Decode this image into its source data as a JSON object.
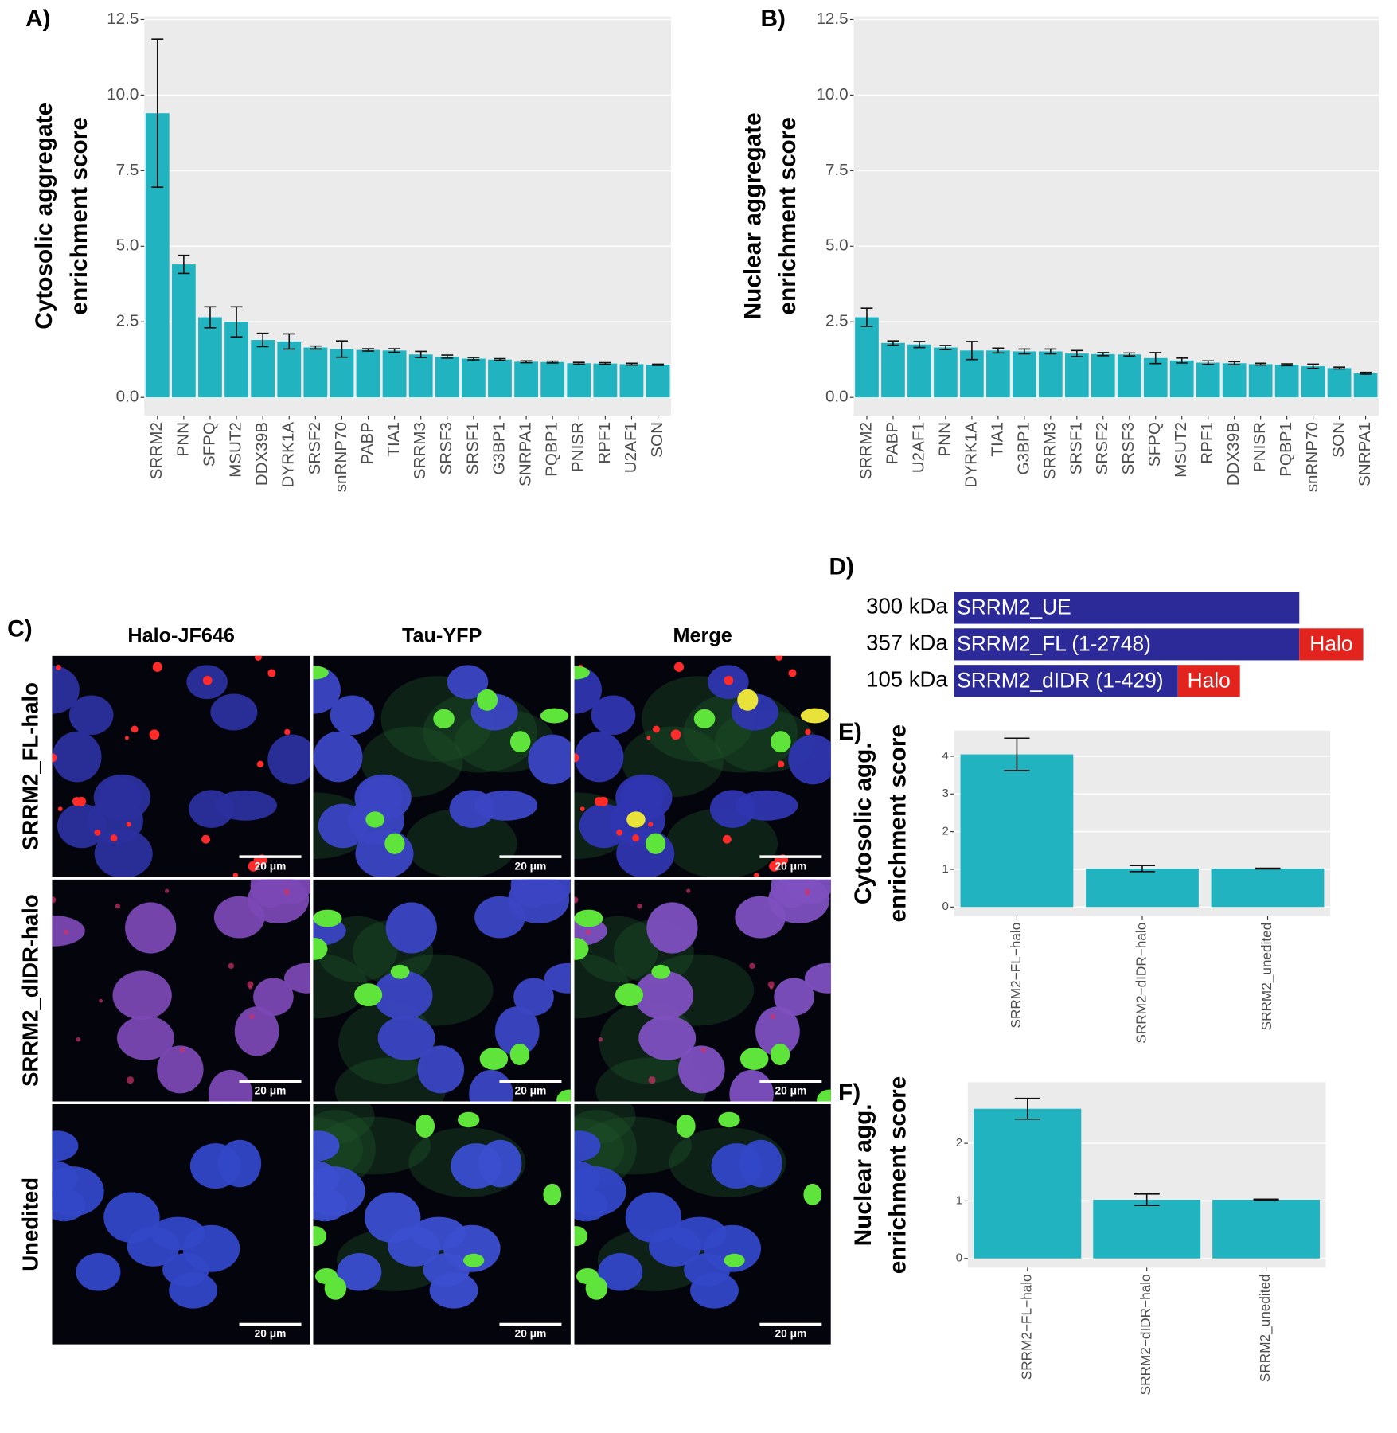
{
  "chart_data": [
    {
      "type": "bar",
      "panel_label": "A)",
      "ylabel": [
        "Cytosolic aggregate",
        "enrichment score"
      ],
      "categories": [
        "SRRM2",
        "PNN",
        "SFPQ",
        "MSUT2",
        "DDX39B",
        "DYRK1A",
        "SRSF2",
        "snRNP70",
        "PABP",
        "TIA1",
        "SRRM3",
        "SRSF3",
        "SRSF1",
        "G3BP1",
        "SNRPA1",
        "PQBP1",
        "PNISR",
        "RPF1",
        "U2AF1",
        "SON"
      ],
      "values": [
        9.4,
        4.4,
        2.65,
        2.5,
        1.9,
        1.85,
        1.65,
        1.6,
        1.57,
        1.55,
        1.42,
        1.35,
        1.28,
        1.25,
        1.18,
        1.17,
        1.13,
        1.12,
        1.1,
        1.08
      ],
      "errors": [
        2.45,
        0.3,
        0.35,
        0.5,
        0.22,
        0.25,
        0.05,
        0.27,
        0.04,
        0.06,
        0.1,
        0.05,
        0.04,
        0.03,
        0.03,
        0.03,
        0.03,
        0.03,
        0.03,
        0.02
      ],
      "color": "#21b3bf",
      "ylim": [
        -0.6,
        12.6
      ],
      "yticks": [
        {
          "value": 0,
          "label": "0.0"
        },
        2.5,
        {
          "value": 5,
          "label": "5.0"
        },
        7.5,
        {
          "value": 10,
          "label": "10.0"
        },
        12.5
      ],
      "grid": true
    },
    {
      "type": "bar",
      "panel_label": "B)",
      "ylabel": [
        "Nuclear aggregate",
        "enrichment score"
      ],
      "categories": [
        "SRRM2",
        "PABP",
        "U2AF1",
        "PNN",
        "DYRK1A",
        "TIA1",
        "G3BP1",
        "SRRM3",
        "SRSF1",
        "SRSF2",
        "SRSF3",
        "SFPQ",
        "MSUT2",
        "RPF1",
        "DDX39B",
        "PNISR",
        "PQBP1",
        "snRNP70",
        "SON",
        "SNRPA1"
      ],
      "values": [
        2.65,
        1.8,
        1.75,
        1.65,
        1.55,
        1.55,
        1.52,
        1.52,
        1.45,
        1.43,
        1.42,
        1.3,
        1.22,
        1.15,
        1.13,
        1.1,
        1.08,
        1.03,
        0.97,
        0.8
      ],
      "errors": [
        0.3,
        0.07,
        0.1,
        0.07,
        0.3,
        0.08,
        0.08,
        0.08,
        0.1,
        0.05,
        0.05,
        0.18,
        0.08,
        0.06,
        0.05,
        0.03,
        0.03,
        0.07,
        0.03,
        0.03
      ],
      "color": "#21b3bf",
      "ylim": [
        -0.6,
        12.6
      ],
      "yticks": [
        {
          "value": 0,
          "label": "0.0"
        },
        2.5,
        {
          "value": 5,
          "label": "5.0"
        },
        7.5,
        {
          "value": 10,
          "label": "10.0"
        },
        12.5
      ],
      "grid": true
    },
    {
      "type": "bar",
      "panel_label": "E)",
      "ylabel": [
        "Cytosolic agg.",
        "enrichment score"
      ],
      "categories": [
        "SRRM2−FL−halo",
        "SRRM2−dIDR−halo",
        "SRRM2_unedited"
      ],
      "values": [
        4.05,
        1.02,
        1.02
      ],
      "errors": [
        0.43,
        0.08,
        0.01
      ],
      "color": "#21b3bf",
      "ylim": [
        -0.24,
        4.68
      ],
      "yticks": [
        0,
        1,
        2,
        3,
        4
      ],
      "grid": true
    },
    {
      "type": "bar",
      "panel_label": "F)",
      "ylabel": [
        "Nuclear agg.",
        "enrichment score"
      ],
      "categories": [
        "SRRM2−FL−halo",
        "SRRM2−dIDR−halo",
        "SRRM2_unedited"
      ],
      "values": [
        2.6,
        1.02,
        1.02
      ],
      "errors": [
        0.18,
        0.1,
        0.01
      ],
      "color": "#21b3bf",
      "ylim": [
        -0.16,
        3.06
      ],
      "yticks": [
        0,
        1,
        2
      ],
      "grid": true
    }
  ],
  "panel_c": {
    "label": "C)",
    "columns": [
      "Halo-JF646",
      "Tau-YFP",
      "Merge"
    ],
    "rows": [
      "SRRM2_FL-halo",
      "SRRM2_dIDR-halo",
      "Unedited"
    ],
    "scale_bars": [
      "20 μm",
      "20 μm",
      "20 μm",
      "20 μm",
      "20 μm",
      "20 μm",
      "20 μm",
      "20 μm",
      "20 μm"
    ]
  },
  "panel_d": {
    "label": "D)",
    "constructs": [
      {
        "mass": "300 kDa",
        "name": "SRRM2_UE"
      },
      {
        "mass": "357 kDa",
        "name": "SRRM2_FL (1-2748)",
        "tag": "Halo"
      },
      {
        "mass": "105 kDa",
        "name": "SRRM2_dIDR (1-429)",
        "tag": "Halo"
      }
    ]
  }
}
